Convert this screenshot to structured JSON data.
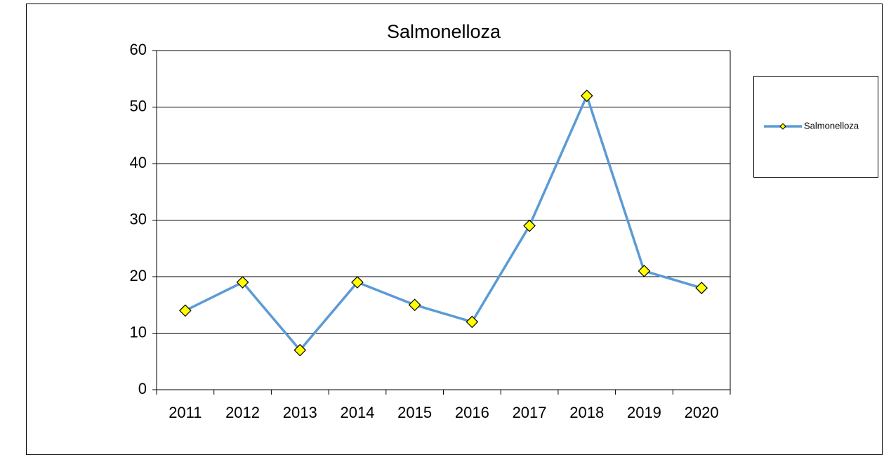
{
  "chart_data": {
    "type": "line",
    "title": "Salmonelloza",
    "categories": [
      "2011",
      "2012",
      "2013",
      "2014",
      "2015",
      "2016",
      "2017",
      "2018",
      "2019",
      "2020"
    ],
    "series": [
      {
        "name": "Salmonelloza",
        "color": "#5b9bd5",
        "values": [
          14,
          19,
          7,
          19,
          15,
          12,
          29,
          52,
          21,
          18
        ]
      }
    ],
    "ylim": [
      0,
      60
    ],
    "yticks": [
      0,
      10,
      20,
      30,
      40,
      50,
      60
    ],
    "grid": true,
    "legend": "right"
  }
}
